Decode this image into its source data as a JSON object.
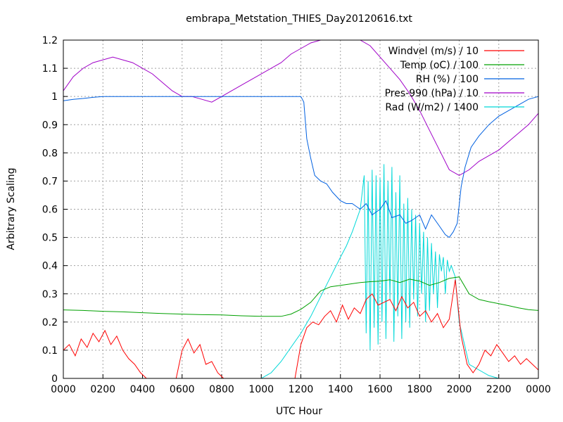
{
  "chart_data": {
    "type": "line",
    "title": "embrapa_Metstation_THIES_Day20120616.txt",
    "xlabel": "UTC Hour",
    "ylabel": "Arbitrary Scaling",
    "xlim": [
      0,
      2400
    ],
    "ylim": [
      0,
      1.2
    ],
    "x_ticks": [
      "0000",
      "0200",
      "0400",
      "0600",
      "0800",
      "1000",
      "1200",
      "1400",
      "1600",
      "1800",
      "2000",
      "2200",
      "0000"
    ],
    "y_ticks": [
      "0",
      "0.1",
      "0.2",
      "0.3",
      "0.4",
      "0.5",
      "0.6",
      "0.7",
      "0.8",
      "0.9",
      "1",
      "1.1",
      "1.2"
    ],
    "grid": true,
    "legend_position": "top-right",
    "series": [
      {
        "name": "Windvel (m/s) / 10",
        "color": "#ff0000",
        "x": [
          0,
          30,
          60,
          90,
          120,
          150,
          180,
          210,
          240,
          270,
          300,
          330,
          360,
          390,
          420,
          450,
          480,
          510,
          540,
          570,
          600,
          630,
          660,
          690,
          720,
          750,
          780,
          810,
          840,
          870,
          900,
          930,
          960,
          990,
          1020,
          1050,
          1080,
          1110,
          1140,
          1170,
          1200,
          1230,
          1260,
          1290,
          1320,
          1350,
          1380,
          1410,
          1440,
          1470,
          1500,
          1530,
          1560,
          1590,
          1620,
          1650,
          1680,
          1710,
          1740,
          1770,
          1800,
          1830,
          1860,
          1890,
          1920,
          1950,
          1980,
          2010,
          2040,
          2070,
          2100,
          2130,
          2160,
          2190,
          2220,
          2250,
          2280,
          2310,
          2340,
          2370,
          2400
        ],
        "y": [
          0.1,
          0.12,
          0.08,
          0.14,
          0.11,
          0.16,
          0.13,
          0.17,
          0.12,
          0.15,
          0.1,
          0.07,
          0.05,
          0.02,
          0.0,
          0.0,
          0.0,
          0.0,
          0.0,
          0.0,
          0.1,
          0.14,
          0.09,
          0.12,
          0.05,
          0.06,
          0.02,
          0.0,
          0.0,
          0.0,
          0.0,
          0.0,
          0.0,
          0.0,
          0.0,
          0.0,
          0.0,
          0.0,
          0.0,
          0.0,
          0.12,
          0.18,
          0.2,
          0.19,
          0.22,
          0.24,
          0.2,
          0.26,
          0.21,
          0.25,
          0.23,
          0.28,
          0.3,
          0.26,
          0.27,
          0.28,
          0.24,
          0.29,
          0.25,
          0.27,
          0.22,
          0.24,
          0.2,
          0.23,
          0.18,
          0.21,
          0.35,
          0.15,
          0.05,
          0.02,
          0.05,
          0.1,
          0.08,
          0.12,
          0.09,
          0.06,
          0.08,
          0.05,
          0.07,
          0.05,
          0.03
        ]
      },
      {
        "name": "Temp (oC) / 100",
        "color": "#00a000",
        "x": [
          0,
          100,
          200,
          300,
          400,
          500,
          600,
          700,
          800,
          900,
          1000,
          1100,
          1150,
          1200,
          1250,
          1300,
          1350,
          1400,
          1450,
          1500,
          1550,
          1600,
          1650,
          1700,
          1750,
          1800,
          1850,
          1900,
          1950,
          2000,
          2050,
          2100,
          2150,
          2200,
          2250,
          2300,
          2350,
          2400
        ],
        "y": [
          0.243,
          0.241,
          0.238,
          0.236,
          0.233,
          0.23,
          0.228,
          0.226,
          0.225,
          0.222,
          0.22,
          0.22,
          0.228,
          0.245,
          0.27,
          0.31,
          0.325,
          0.33,
          0.335,
          0.34,
          0.343,
          0.345,
          0.35,
          0.34,
          0.352,
          0.345,
          0.33,
          0.34,
          0.355,
          0.36,
          0.3,
          0.28,
          0.272,
          0.265,
          0.258,
          0.25,
          0.244,
          0.241
        ]
      },
      {
        "name": "RH (%) / 100",
        "color": "#0060e0",
        "x": [
          0,
          50,
          100,
          150,
          200,
          300,
          400,
          500,
          600,
          700,
          800,
          900,
          1000,
          1100,
          1200,
          1215,
          1230,
          1250,
          1270,
          1300,
          1330,
          1360,
          1400,
          1430,
          1460,
          1500,
          1530,
          1560,
          1600,
          1630,
          1660,
          1700,
          1730,
          1760,
          1800,
          1830,
          1860,
          1900,
          1930,
          1950,
          1970,
          1990,
          2010,
          2030,
          2060,
          2100,
          2150,
          2200,
          2250,
          2300,
          2350,
          2400
        ],
        "y": [
          0.985,
          0.99,
          0.993,
          0.997,
          1.0,
          1.0,
          1.0,
          1.0,
          1.0,
          1.0,
          1.0,
          1.0,
          1.0,
          1.0,
          1.0,
          0.98,
          0.85,
          0.78,
          0.72,
          0.7,
          0.69,
          0.66,
          0.63,
          0.62,
          0.62,
          0.6,
          0.62,
          0.58,
          0.6,
          0.63,
          0.57,
          0.58,
          0.55,
          0.56,
          0.58,
          0.53,
          0.58,
          0.54,
          0.51,
          0.5,
          0.52,
          0.55,
          0.68,
          0.75,
          0.82,
          0.86,
          0.9,
          0.93,
          0.95,
          0.97,
          0.99,
          1.0
        ]
      },
      {
        "name": "Pres-990 (hPa) / 10",
        "color": "#a000c8",
        "x": [
          0,
          50,
          100,
          150,
          200,
          250,
          300,
          350,
          400,
          450,
          500,
          550,
          600,
          650,
          700,
          750,
          800,
          850,
          900,
          950,
          1000,
          1050,
          1100,
          1150,
          1200,
          1250,
          1300,
          1350,
          1400,
          1450,
          1500,
          1550,
          1600,
          1650,
          1700,
          1750,
          1800,
          1850,
          1900,
          1950,
          2000,
          2050,
          2100,
          2150,
          2200,
          2250,
          2300,
          2350,
          2400
        ],
        "y": [
          1.02,
          1.07,
          1.1,
          1.12,
          1.13,
          1.14,
          1.13,
          1.12,
          1.1,
          1.08,
          1.05,
          1.02,
          1.0,
          1.0,
          0.99,
          0.98,
          1.0,
          1.02,
          1.04,
          1.06,
          1.08,
          1.1,
          1.12,
          1.15,
          1.17,
          1.19,
          1.2,
          1.2,
          1.2,
          1.2,
          1.2,
          1.18,
          1.14,
          1.1,
          1.06,
          1.01,
          0.95,
          0.88,
          0.81,
          0.74,
          0.72,
          0.74,
          0.77,
          0.79,
          0.81,
          0.84,
          0.87,
          0.9,
          0.94
        ]
      },
      {
        "name": "Rad (W/m2) / 1400",
        "color": "#00d8d8",
        "x": [
          1000,
          1050,
          1100,
          1150,
          1200,
          1250,
          1300,
          1350,
          1400,
          1430,
          1460,
          1500,
          1520,
          1530,
          1540,
          1550,
          1560,
          1570,
          1580,
          1590,
          1600,
          1610,
          1620,
          1630,
          1640,
          1650,
          1660,
          1670,
          1680,
          1690,
          1700,
          1710,
          1720,
          1730,
          1740,
          1750,
          1760,
          1770,
          1780,
          1790,
          1800,
          1810,
          1820,
          1830,
          1840,
          1850,
          1860,
          1870,
          1880,
          1890,
          1900,
          1910,
          1920,
          1930,
          1940,
          1950,
          1960,
          1970,
          1980,
          1990,
          2000,
          2050,
          2100,
          2150,
          2200
        ],
        "y": [
          0.0,
          0.02,
          0.06,
          0.11,
          0.16,
          0.22,
          0.29,
          0.36,
          0.43,
          0.47,
          0.52,
          0.6,
          0.72,
          0.16,
          0.7,
          0.1,
          0.74,
          0.18,
          0.72,
          0.12,
          0.71,
          0.2,
          0.76,
          0.14,
          0.7,
          0.28,
          0.75,
          0.13,
          0.66,
          0.22,
          0.72,
          0.14,
          0.62,
          0.2,
          0.64,
          0.18,
          0.6,
          0.28,
          0.58,
          0.22,
          0.55,
          0.3,
          0.52,
          0.2,
          0.5,
          0.24,
          0.48,
          0.3,
          0.45,
          0.25,
          0.44,
          0.38,
          0.43,
          0.3,
          0.42,
          0.38,
          0.4,
          0.38,
          0.36,
          0.28,
          0.2,
          0.05,
          0.03,
          0.01,
          0.0
        ]
      }
    ]
  }
}
